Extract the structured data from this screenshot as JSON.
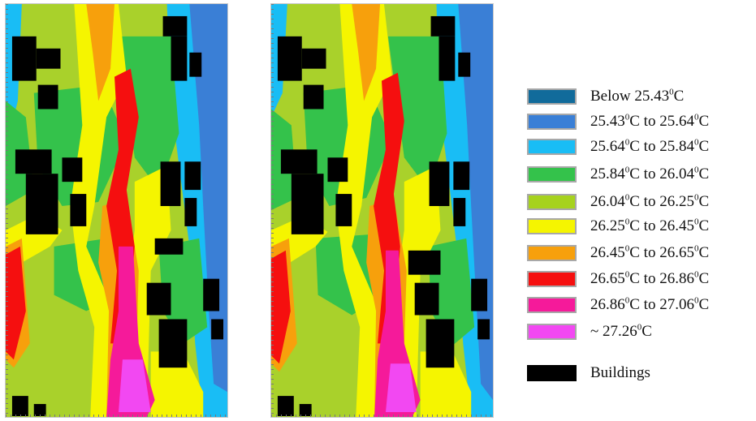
{
  "maps": [
    {
      "name": "left-temperature-map"
    },
    {
      "name": "right-temperature-map"
    }
  ],
  "legend": {
    "items": [
      {
        "label_parts": [
          "Below 25.43",
          "0",
          "C",
          "",
          ""
        ],
        "color": "#116b9b"
      },
      {
        "label_parts": [
          "25.43",
          "0",
          "C to 25.64",
          "0",
          "C"
        ],
        "color": "#3a7fd6"
      },
      {
        "label_parts": [
          "25.64",
          "0",
          "C to 25.84",
          "0",
          "C"
        ],
        "color": "#19bdf5"
      },
      {
        "label_parts": [
          "25.84",
          "0",
          "C to 26.04",
          "0",
          "C"
        ],
        "color": "#34c24b"
      },
      {
        "label_parts": [
          "26.04",
          "0",
          "C to 26.25",
          "0",
          "C"
        ],
        "color": "#a6d21e"
      },
      {
        "label_parts": [
          "26.25",
          "0",
          "C to 26.45",
          "0",
          "C"
        ],
        "color": "#f5f500"
      },
      {
        "label_parts": [
          "26.45",
          "0",
          "C to 26.65",
          "0",
          "C"
        ],
        "color": "#f7a00c"
      },
      {
        "label_parts": [
          "26.65",
          "0",
          "C to 26.86",
          "0",
          "C"
        ],
        "color": "#f50f0f"
      },
      {
        "label_parts": [
          "26.86",
          "0",
          "C to 27.06",
          "0",
          "C"
        ],
        "color": "#f51a9a"
      },
      {
        "label_parts": [
          "~  27.26",
          "0",
          "C",
          "",
          ""
        ],
        "color": "#f248f2"
      },
      {
        "label_parts": [
          "Buildings",
          "",
          "",
          "",
          ""
        ],
        "color": "#000000"
      }
    ]
  }
}
